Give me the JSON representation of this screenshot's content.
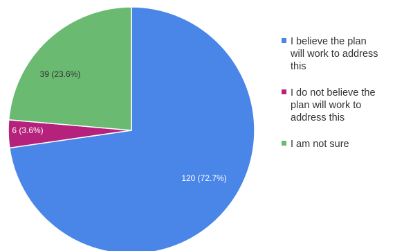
{
  "chart_data": {
    "type": "pie",
    "title": "",
    "legend_position": "right",
    "slices": [
      {
        "value": 120,
        "percent": "72.7%",
        "data_label": "120 (72.7%)",
        "legend_lines": [
          "I believe the plan",
          "will work to address",
          "this"
        ],
        "color": "#4a86e8",
        "label_color": "#ffffff"
      },
      {
        "value": 6,
        "percent": "3.6%",
        "data_label": "6 (3.6%)",
        "legend_lines": [
          "I do not believe the",
          "plan will work to",
          "address this"
        ],
        "color": "#b5227b",
        "label_color": "#ffffff"
      },
      {
        "value": 39,
        "percent": "23.6%",
        "data_label": "39 (23.6%)",
        "legend_lines": [
          "I am not sure"
        ],
        "color": "#6aba72",
        "label_color": "#333333"
      }
    ]
  }
}
